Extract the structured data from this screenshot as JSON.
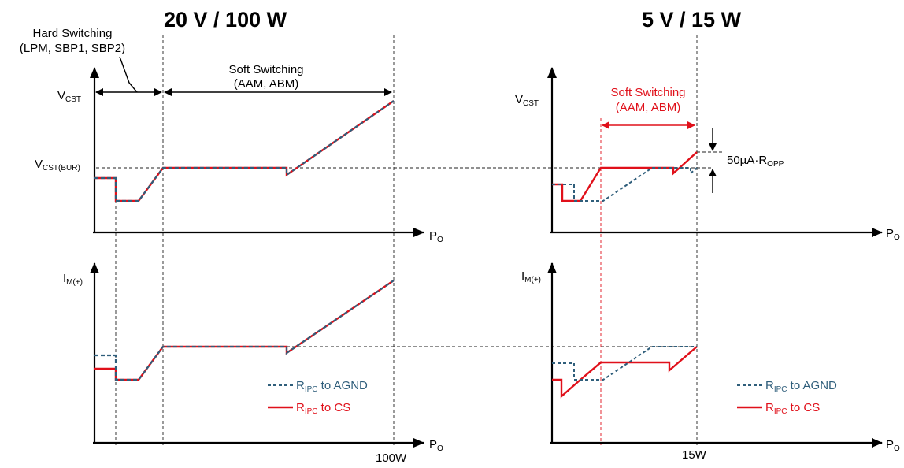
{
  "left": {
    "title": "20 V / 100 W",
    "hard_switching": {
      "line1": "Hard Switching",
      "line2": "(LPM, SBP1, SBP2)"
    },
    "soft_switching": {
      "line1": "Soft Switching",
      "line2": "(AAM, ABM)"
    },
    "top_axis": {
      "ylabel_main": "V",
      "ylabel_sub": "CST",
      "xlabel_main": "P",
      "xlabel_sub": "O"
    },
    "bur_label": {
      "main": "V",
      "sub": "CST(BUR)"
    },
    "bottom_axis": {
      "ylabel_main": "I",
      "ylabel_sub": "M(+)",
      "xlabel_main": "P",
      "xlabel_sub": "O",
      "xtick": "100W"
    },
    "legend": [
      {
        "main": "R",
        "sub": "IPC",
        "rest": " to AGND",
        "color": "#2f5e7b",
        "style": "dashed"
      },
      {
        "main": "R",
        "sub": "IPC",
        "rest": " to CS",
        "color": "#e0101a",
        "style": "solid"
      }
    ]
  },
  "right": {
    "title": "5 V / 15 W",
    "soft_switching": {
      "line1": "Soft Switching",
      "line2": "(AAM, ABM)"
    },
    "top_axis": {
      "ylabel_main": "V",
      "ylabel_sub": "CST",
      "xlabel_main": "P",
      "xlabel_sub": "O"
    },
    "opp_label": {
      "main": "50µA·R",
      "sub": "OPP"
    },
    "bottom_axis": {
      "ylabel_main": "I",
      "ylabel_sub": "M(+)",
      "xlabel_main": "P",
      "xlabel_sub": "O",
      "xtick": "15W"
    },
    "legend": [
      {
        "main": "R",
        "sub": "IPC",
        "rest": " to AGND",
        "color": "#2f5e7b",
        "style": "dashed"
      },
      {
        "main": "R",
        "sub": "IPC",
        "rest": " to CS",
        "color": "#e0101a",
        "style": "solid"
      }
    ]
  },
  "colors": {
    "red": "#e0101a",
    "blue": "#2f5e7b",
    "black": "#000000"
  }
}
